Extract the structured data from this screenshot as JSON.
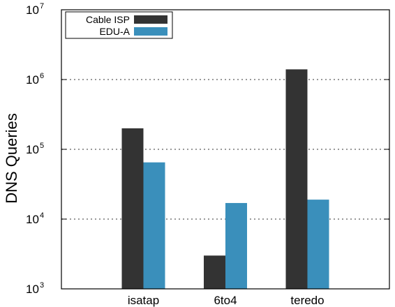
{
  "chart_data": {
    "type": "bar",
    "title": "",
    "xlabel": "",
    "ylabel": "DNS Queries",
    "yscale": "log",
    "ylim": [
      1000,
      10000000
    ],
    "yticks": [
      {
        "base": "10",
        "exp": "3",
        "value": 1000
      },
      {
        "base": "10",
        "exp": "4",
        "value": 10000
      },
      {
        "base": "10",
        "exp": "5",
        "value": 100000
      },
      {
        "base": "10",
        "exp": "6",
        "value": 1000000
      },
      {
        "base": "10",
        "exp": "7",
        "value": 10000000
      }
    ],
    "grid": "horizontal dotted at major ticks 10^4-10^6",
    "legend_position": "top-left",
    "categories": [
      "isatap",
      "6to4",
      "teredo"
    ],
    "series": [
      {
        "name": "Cable ISP",
        "color": "#333333",
        "values": [
          200000,
          3000,
          1400000
        ]
      },
      {
        "name": "EDU-A",
        "color": "#3a8fbb",
        "values": [
          65000,
          17000,
          19000
        ]
      }
    ]
  }
}
